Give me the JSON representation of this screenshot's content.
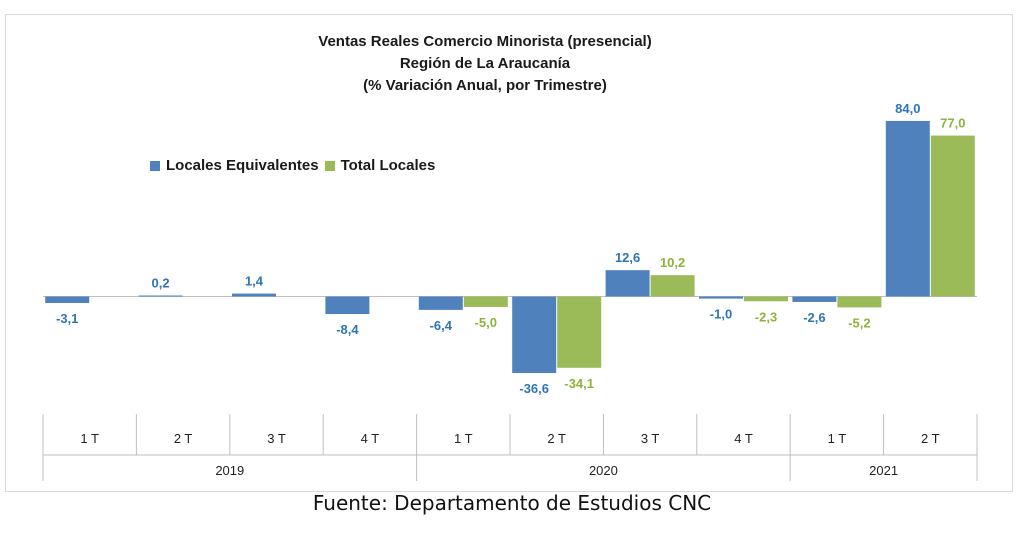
{
  "title_lines": [
    "Ventas Reales Comercio Minorista  (presencial)",
    "Región de La Araucanía",
    "(% Variación Anual, por Trimestre)"
  ],
  "source": "Fuente: Departamento de Estudios CNC",
  "colors": {
    "series1": "#4f81bd",
    "series2": "#9bbb59",
    "label1": "#2e75b6",
    "label2": "#8db33a"
  },
  "chart_data": {
    "type": "bar",
    "title": "Ventas Reales Comercio Minorista  (presencial) Región de La Araucanía (% Variación Anual, por Trimestre)",
    "categories": [
      "1 T",
      "2 T",
      "3 T",
      "4 T",
      "1 T",
      "2 T",
      "3 T",
      "4 T",
      "1 T",
      "2 T"
    ],
    "groups": [
      {
        "label": "2019",
        "span": 4
      },
      {
        "label": "2020",
        "span": 4
      },
      {
        "label": "2021",
        "span": 2
      }
    ],
    "series": [
      {
        "name": "Locales Equivalentes",
        "values": [
          -3.1,
          0.2,
          1.4,
          -8.4,
          -6.4,
          -36.6,
          12.6,
          -1.0,
          -2.6,
          84.0
        ],
        "labels": [
          "-3,1",
          "0,2",
          "1,4",
          "-8,4",
          "-6,4",
          "-36,6",
          "12,6",
          "-1,0",
          "-2,6",
          "84,0"
        ]
      },
      {
        "name": "Total Locales",
        "values": [
          null,
          null,
          null,
          null,
          -5.0,
          -34.1,
          10.2,
          -2.3,
          -5.2,
          77.0
        ],
        "labels": [
          "",
          "",
          "",
          "",
          "-5,0",
          "-34,1",
          "10,2",
          "-2,3",
          "-5,2",
          "77,0"
        ]
      }
    ],
    "legend_position": "upper-left",
    "grid": false
  }
}
